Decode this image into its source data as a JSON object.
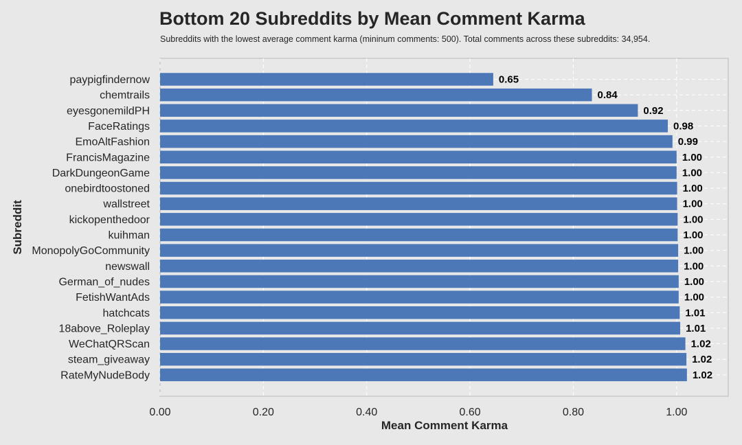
{
  "chart_data": {
    "type": "bar",
    "orientation": "horizontal",
    "title": "Bottom 20 Subreddits by Mean Comment Karma",
    "subtitle": "Subreddits with the lowest average comment karma (mininum comments: 500). Total comments across these subreddits: 34,954.",
    "xlabel": "Mean Comment Karma",
    "ylabel": "Subreddit",
    "xlim": [
      0,
      1.1
    ],
    "xticks": [
      "0.00",
      "0.20",
      "0.40",
      "0.60",
      "0.80",
      "1.00"
    ],
    "xtick_values": [
      0,
      0.2,
      0.4,
      0.6,
      0.8,
      1.0
    ],
    "grid": true,
    "bar_color": "#4c78b7",
    "categories": [
      "paypigfindernow",
      "chemtrails",
      "eyesgonemildPH",
      "FaceRatings",
      "EmoAltFashion",
      "FrancisMagazine",
      "DarkDungeonGame",
      "onebirdtoostoned",
      "wallstreet",
      "kickopenthedoor",
      "kuihman",
      "MonopolyGoCommunity",
      "newswall",
      "German_of_nudes",
      "FetishWantAds",
      "hatchcats",
      "18above_Roleplay",
      "WeChatQRScan",
      "steam_giveaway",
      "RateMyNudeBody"
    ],
    "values": [
      0.645,
      0.836,
      0.925,
      0.983,
      0.992,
      1.0,
      1.0,
      1.001,
      1.001,
      1.002,
      1.002,
      1.003,
      1.003,
      1.004,
      1.004,
      1.006,
      1.007,
      1.017,
      1.019,
      1.02
    ],
    "value_labels": [
      "0.65",
      "0.84",
      "0.92",
      "0.98",
      "0.99",
      "1.00",
      "1.00",
      "1.00",
      "1.00",
      "1.00",
      "1.00",
      "1.00",
      "1.00",
      "1.00",
      "1.00",
      "1.01",
      "1.01",
      "1.02",
      "1.02",
      "1.02"
    ]
  }
}
